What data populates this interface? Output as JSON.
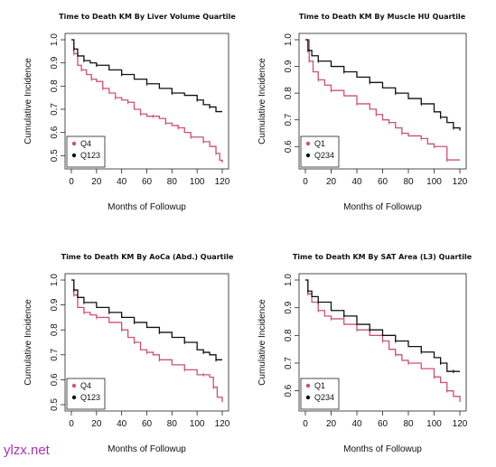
{
  "watermark": {
    "text": "ylzx.net",
    "color": "#b030b0"
  },
  "chart_data": [
    {
      "type": "line",
      "title": "Time to Death KM By Liver Volume Quartile",
      "xlabel": "Months of Followup",
      "ylabel": "Cumulative Incidence",
      "xlim": [
        0,
        120
      ],
      "ylim": [
        0.47,
        1.0
      ],
      "xticks": [
        0,
        20,
        40,
        60,
        80,
        100,
        120
      ],
      "yticks": [
        0.5,
        0.6,
        0.7,
        0.8,
        0.9,
        1.0
      ],
      "legend_position": "bottom-left",
      "series": [
        {
          "name": "Q4",
          "color": "#d05070",
          "x": [
            0,
            2,
            5,
            8,
            12,
            16,
            20,
            25,
            30,
            35,
            40,
            45,
            50,
            55,
            60,
            65,
            70,
            75,
            80,
            85,
            90,
            95,
            100,
            105,
            110,
            115,
            118,
            120
          ],
          "y": [
            1.0,
            0.94,
            0.89,
            0.87,
            0.85,
            0.83,
            0.82,
            0.79,
            0.77,
            0.75,
            0.74,
            0.73,
            0.7,
            0.68,
            0.67,
            0.67,
            0.66,
            0.64,
            0.63,
            0.62,
            0.6,
            0.58,
            0.58,
            0.56,
            0.54,
            0.51,
            0.48,
            0.47
          ]
        },
        {
          "name": "Q123",
          "color": "#111111",
          "x": [
            0,
            2,
            5,
            10,
            15,
            20,
            30,
            40,
            50,
            60,
            70,
            80,
            90,
            100,
            105,
            110,
            115,
            120
          ],
          "y": [
            1.0,
            0.96,
            0.93,
            0.91,
            0.9,
            0.89,
            0.87,
            0.85,
            0.83,
            0.81,
            0.79,
            0.77,
            0.76,
            0.74,
            0.72,
            0.71,
            0.69,
            0.69
          ]
        }
      ]
    },
    {
      "type": "line",
      "title": "Time to Death KM By Muscle HU Quartile",
      "xlabel": "Months of Followup",
      "ylabel": "Cumulative Incidence",
      "xlim": [
        0,
        120
      ],
      "ylim": [
        0.54,
        1.0
      ],
      "xticks": [
        0,
        20,
        40,
        60,
        80,
        100,
        120
      ],
      "yticks": [
        0.6,
        0.7,
        0.8,
        0.9,
        1.0
      ],
      "legend_position": "bottom-left",
      "series": [
        {
          "name": "Q1",
          "color": "#d05070",
          "x": [
            0,
            3,
            6,
            10,
            15,
            20,
            30,
            40,
            50,
            55,
            60,
            65,
            70,
            75,
            80,
            90,
            95,
            100,
            105,
            110,
            115,
            120
          ],
          "y": [
            1.0,
            0.92,
            0.88,
            0.85,
            0.83,
            0.81,
            0.79,
            0.76,
            0.74,
            0.72,
            0.7,
            0.69,
            0.67,
            0.65,
            0.64,
            0.63,
            0.61,
            0.6,
            0.6,
            0.55,
            0.55,
            0.55
          ]
        },
        {
          "name": "Q234",
          "color": "#111111",
          "x": [
            0,
            2,
            5,
            10,
            20,
            30,
            40,
            50,
            60,
            70,
            80,
            90,
            100,
            105,
            110,
            115,
            118,
            120
          ],
          "y": [
            1.0,
            0.96,
            0.94,
            0.92,
            0.9,
            0.88,
            0.86,
            0.84,
            0.82,
            0.8,
            0.78,
            0.76,
            0.73,
            0.71,
            0.69,
            0.67,
            0.67,
            0.66
          ]
        }
      ]
    },
    {
      "type": "line",
      "title": "Time to Death KM By AoCa (Abd.) Quartile",
      "xlabel": "Months of Followup",
      "ylabel": "Cumulative Incidence",
      "xlim": [
        0,
        120
      ],
      "ylim": [
        0.5,
        1.0
      ],
      "xticks": [
        0,
        20,
        40,
        60,
        80,
        100,
        120
      ],
      "yticks": [
        0.5,
        0.6,
        0.7,
        0.8,
        0.9,
        1.0
      ],
      "legend_position": "bottom-left",
      "series": [
        {
          "name": "Q4",
          "color": "#d05070",
          "x": [
            0,
            2,
            5,
            10,
            15,
            20,
            30,
            40,
            45,
            50,
            55,
            60,
            65,
            70,
            80,
            90,
            100,
            105,
            110,
            113,
            116,
            120
          ],
          "y": [
            1.0,
            0.94,
            0.89,
            0.87,
            0.86,
            0.85,
            0.83,
            0.8,
            0.77,
            0.75,
            0.72,
            0.71,
            0.7,
            0.68,
            0.66,
            0.64,
            0.62,
            0.62,
            0.61,
            0.57,
            0.53,
            0.51
          ]
        },
        {
          "name": "Q123",
          "color": "#111111",
          "x": [
            0,
            2,
            5,
            10,
            20,
            30,
            40,
            50,
            60,
            70,
            80,
            90,
            100,
            105,
            110,
            115,
            120
          ],
          "y": [
            1.0,
            0.96,
            0.93,
            0.91,
            0.89,
            0.87,
            0.85,
            0.83,
            0.81,
            0.79,
            0.77,
            0.75,
            0.72,
            0.71,
            0.7,
            0.68,
            0.68
          ]
        }
      ]
    },
    {
      "type": "line",
      "title": "Time to Death KM By SAT Area (L3) Quartile",
      "xlabel": "Months of Followup",
      "ylabel": "Cumulative Incidence",
      "xlim": [
        0,
        120
      ],
      "ylim": [
        0.55,
        1.0
      ],
      "xticks": [
        0,
        20,
        40,
        60,
        80,
        100,
        120
      ],
      "yticks": [
        0.6,
        0.7,
        0.8,
        0.9,
        1.0
      ],
      "legend_position": "bottom-left",
      "series": [
        {
          "name": "Q1",
          "color": "#d05070",
          "x": [
            0,
            2,
            5,
            10,
            15,
            20,
            30,
            40,
            50,
            60,
            65,
            70,
            75,
            80,
            90,
            100,
            105,
            110,
            115,
            120
          ],
          "y": [
            1.0,
            0.95,
            0.92,
            0.89,
            0.87,
            0.86,
            0.84,
            0.82,
            0.8,
            0.78,
            0.75,
            0.73,
            0.71,
            0.7,
            0.68,
            0.65,
            0.63,
            0.6,
            0.58,
            0.56
          ]
        },
        {
          "name": "Q234",
          "color": "#111111",
          "x": [
            0,
            2,
            5,
            10,
            20,
            30,
            40,
            50,
            60,
            70,
            80,
            90,
            100,
            105,
            110,
            115,
            120
          ],
          "y": [
            1.0,
            0.96,
            0.94,
            0.92,
            0.89,
            0.87,
            0.84,
            0.82,
            0.8,
            0.78,
            0.76,
            0.74,
            0.72,
            0.7,
            0.67,
            0.67,
            0.67
          ]
        }
      ]
    }
  ]
}
